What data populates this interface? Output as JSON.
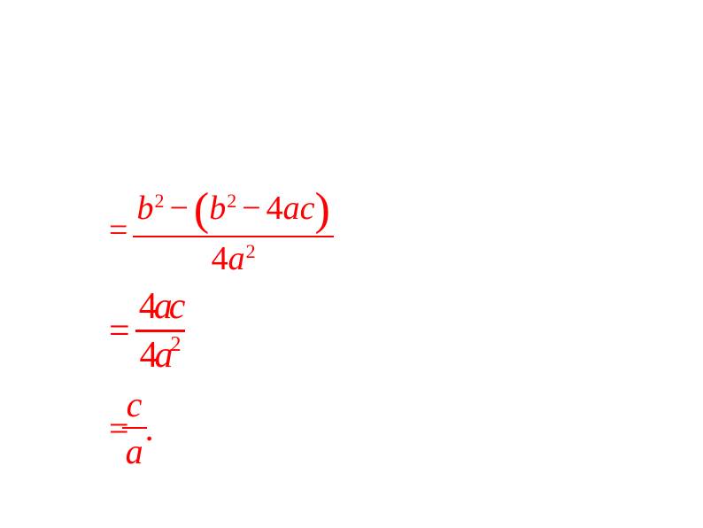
{
  "equations": {
    "eq1": {
      "equals": "=",
      "numerator": {
        "b": "b",
        "sup2_1": "2",
        "minus1": "−",
        "lparen": "(",
        "b2": "b",
        "sup2_2": "2",
        "minus2": "−",
        "four": "4",
        "a": "a",
        "c": "c",
        "rparen": ")"
      },
      "denominator": {
        "four": "4",
        "a": "a",
        "sup2": "2"
      }
    },
    "eq2": {
      "equals": "=",
      "numerator": {
        "four": "4",
        "a": "a",
        "c": "c"
      },
      "denominator": {
        "four": "4",
        "a": "a",
        "sup2": "2"
      }
    },
    "eq3": {
      "equals": "=",
      "numerator": {
        "c": "c"
      },
      "denominator": {
        "a": "a"
      },
      "period": "."
    }
  },
  "styling": {
    "text_color": "#ff0000",
    "background_color": "#ffffff",
    "font_family": "Times New Roman",
    "base_fontsize": 38,
    "sup_fontsize": 22
  }
}
